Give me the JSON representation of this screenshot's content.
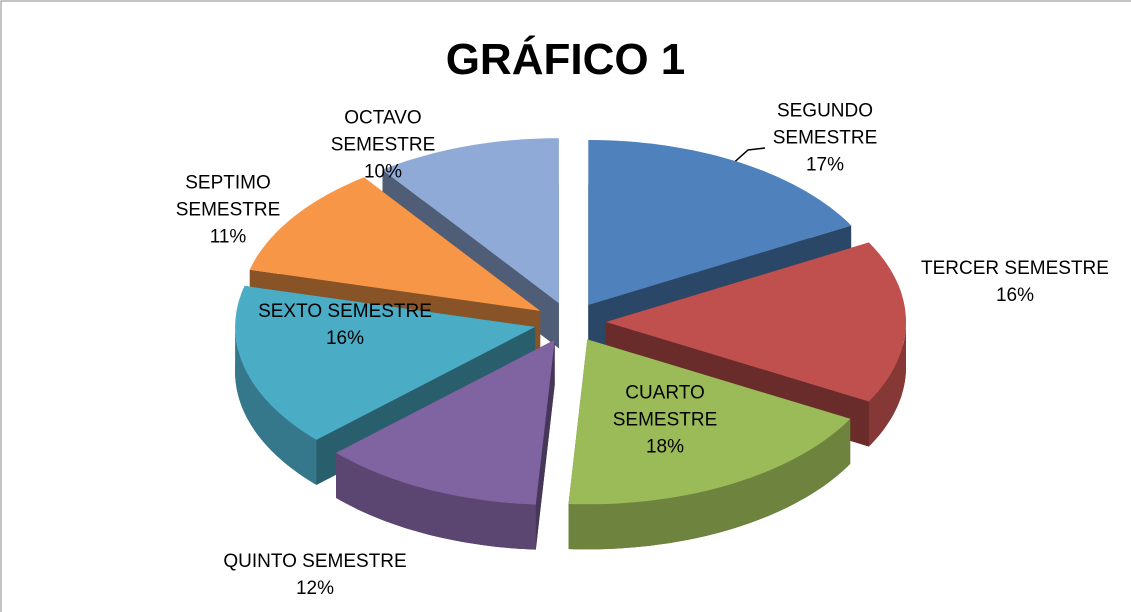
{
  "chart_data": {
    "type": "pie",
    "title": "GRÁFICO 1",
    "categories": [
      "SEGUNDO SEMESTRE",
      "TERCER SEMESTRE",
      "CUARTO SEMESTRE",
      "QUINTO SEMESTRE",
      "SEXTO SEMESTRE",
      "SEPTIMO SEMESTRE",
      "OCTAVO SEMESTRE"
    ],
    "values": [
      17,
      16,
      18,
      12,
      16,
      11,
      10
    ],
    "value_labels": [
      "17%",
      "16%",
      "18%",
      "12%",
      "16%",
      "11%",
      "10%"
    ],
    "colors": [
      "#4f81bd",
      "#c0504d",
      "#9bbb59",
      "#8064a2",
      "#4bacc6",
      "#f79646",
      "#8faad6"
    ]
  }
}
